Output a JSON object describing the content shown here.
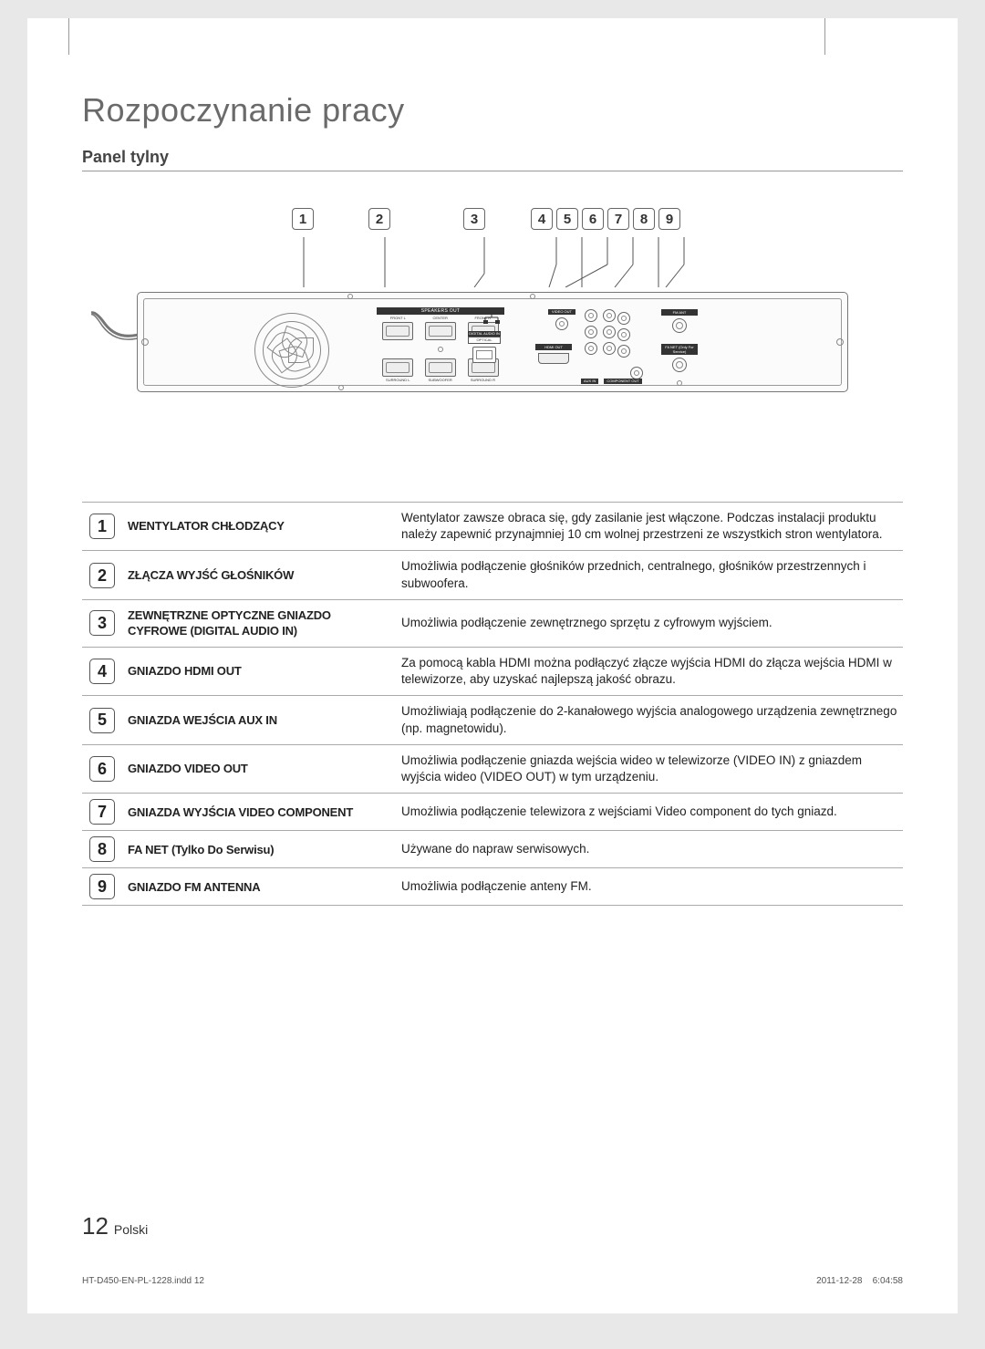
{
  "main_title": "Rozpoczynanie pracy",
  "section_title": "Panel tylny",
  "diagram": {
    "speakers_out_label": "SPEAKERS OUT",
    "spk_labels_top": [
      "FRONT L",
      "CENTER",
      "FRONT R"
    ],
    "spk_labels_bot": [
      "SURROUND L",
      "SUBWOOFER",
      "SURROUND R"
    ],
    "digital_audio_label": "DIGITAL AUDIO IN",
    "optical_label": "OPTICAL",
    "video_out_label": "VIDEO OUT",
    "hdmi_label": "HDMI OUT",
    "aux_label": "AUX IN",
    "component_label": "COMPONENT OUT",
    "fm_label": "FM ANT",
    "fanet_label": "FA NET (Only For Service)"
  },
  "table": [
    {
      "n": "1",
      "label": "WENTYLATOR CHŁODZĄCY",
      "desc": "Wentylator zawsze obraca się, gdy zasilanie jest włączone. Podczas instalacji produktu należy zapewnić przynajmniej 10 cm wolnej przestrzeni ze wszystkich stron wentylatora."
    },
    {
      "n": "2",
      "label": "ZŁĄCZA WYJŚĆ GŁOŚNIKÓW",
      "desc": "Umożliwia podłączenie głośników przednich, centralnego, głośników przestrzennych i subwoofera."
    },
    {
      "n": "3",
      "label": "ZEWNĘTRZNE OPTYCZNE GNIAZDO CYFROWE (DIGITAL AUDIO IN)",
      "desc": "Umożliwia podłączenie zewnętrznego sprzętu z cyfrowym wyjściem."
    },
    {
      "n": "4",
      "label": "GNIAZDO HDMI OUT",
      "desc": "Za pomocą kabla HDMI można podłączyć złącze wyjścia HDMI do złącza wejścia HDMI w telewizorze, aby uzyskać najlepszą jakość obrazu."
    },
    {
      "n": "5",
      "label": "GNIAZDA WEJŚCIA AUX IN",
      "desc": "Umożliwiają podłączenie do 2-kanałowego wyjścia analogowego urządzenia zewnętrznego (np. magnetowidu)."
    },
    {
      "n": "6",
      "label": "GNIAZDO VIDEO OUT",
      "desc": "Umożliwia podłączenie gniazda wejścia wideo w telewizorze (VIDEO IN) z gniazdem wyjścia wideo (VIDEO OUT) w tym urządzeniu."
    },
    {
      "n": "7",
      "label": "GNIAZDA WYJŚCIA VIDEO COMPONENT",
      "desc": "Umożliwia podłączenie telewizora z wejściami Video component do tych gniazd."
    },
    {
      "n": "8",
      "label": "FA NET (Tylko Do Serwisu)",
      "desc": "Używane do napraw serwisowych."
    },
    {
      "n": "9",
      "label": "GNIAZDO FM ANTENNA",
      "desc": "Umożliwia podłączenie anteny FM."
    }
  ],
  "page_number": "12",
  "page_lang": "Polski",
  "footer_file": "HT-D450-EN-PL-1228.indd   12",
  "footer_date": "2011-12-28",
  "footer_time": "6:04:58"
}
